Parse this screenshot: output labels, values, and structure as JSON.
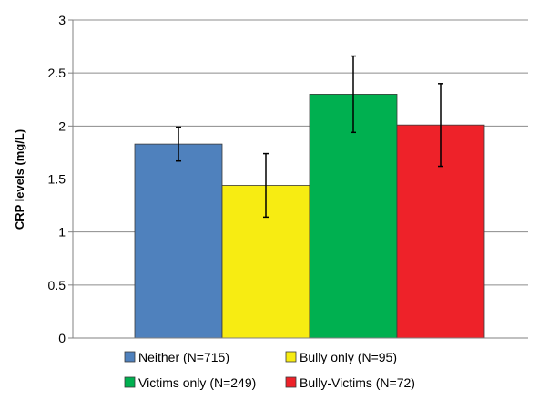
{
  "chart_data": {
    "type": "bar",
    "title": "",
    "xlabel": "",
    "ylabel": "CRP levels (mg/L)",
    "ylim": [
      0,
      3
    ],
    "yticks": [
      "0",
      "0.5",
      "1",
      "1.5",
      "2",
      "2.5",
      "3"
    ],
    "grid": true,
    "legend_placement": "bottom",
    "categories": [
      "Neither (N=715)",
      "Bully only (N=95)",
      "Victims only (N=249)",
      "Bully-Victims (N=72)"
    ],
    "values": [
      1.83,
      1.44,
      2.3,
      2.01
    ],
    "error_low": [
      1.67,
      1.14,
      1.94,
      1.62
    ],
    "error_high": [
      1.99,
      1.74,
      2.66,
      2.4
    ],
    "colors": [
      "#4f81bd",
      "#f7ec12",
      "#00b050",
      "#ee2229"
    ]
  }
}
